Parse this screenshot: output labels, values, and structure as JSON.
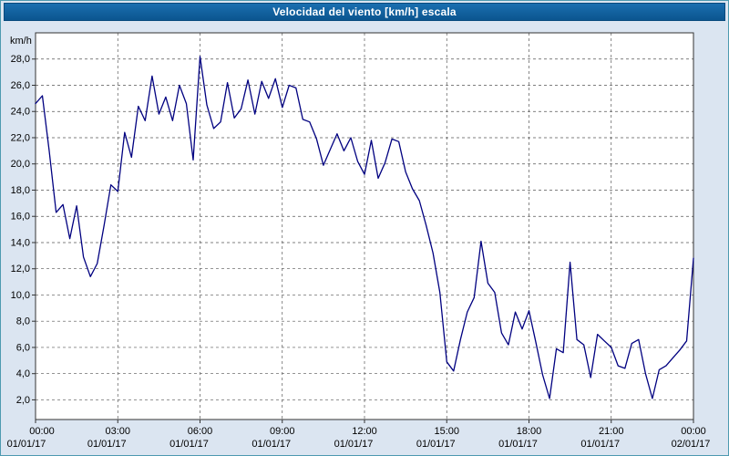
{
  "window": {
    "title": "Velocidad del viento [km/h] escala"
  },
  "chart_data": {
    "type": "line",
    "title": "Velocidad del viento [km/h] escala",
    "ylabel": "km/h",
    "xlabel": "",
    "series_name": "Velocidad del viento",
    "line_color": "#000080",
    "grid_color": "#555555",
    "plot_background": "#ffffff",
    "page_background": "#dbe5f1",
    "title_bar_color": "#0b558f",
    "grid": true,
    "legend": false,
    "x_range": [
      0,
      24
    ],
    "y_range": [
      0.5,
      30
    ],
    "y_ticks": [
      2,
      4,
      6,
      8,
      10,
      12,
      14,
      16,
      18,
      20,
      22,
      24,
      26,
      28
    ],
    "y_tick_labels": [
      "2,0",
      "4,0",
      "6,0",
      "8,0",
      "10,0",
      "12,0",
      "14,0",
      "16,0",
      "18,0",
      "20,0",
      "22,0",
      "24,0",
      "26,0",
      "28,0"
    ],
    "x_ticks": [
      0,
      3,
      6,
      9,
      12,
      15,
      18,
      21,
      24
    ],
    "x_tick_time_labels": [
      "00:00",
      "03:00",
      "06:00",
      "09:00",
      "12:00",
      "15:00",
      "18:00",
      "21:00",
      "00:00"
    ],
    "x_tick_date_labels": [
      "01/01/17",
      "01/01/17",
      "01/01/17",
      "01/01/17",
      "01/01/17",
      "01/01/17",
      "01/01/17",
      "01/01/17",
      "02/01/17"
    ],
    "start_hour": 0,
    "step_hours": 0.25,
    "values": [
      24.6,
      25.2,
      21.0,
      16.3,
      16.9,
      14.3,
      16.8,
      12.9,
      11.4,
      12.4,
      15.3,
      18.4,
      17.9,
      22.4,
      20.5,
      24.4,
      23.3,
      26.7,
      23.8,
      25.1,
      23.3,
      26.0,
      24.6,
      20.3,
      28.2,
      24.5,
      22.7,
      23.2,
      26.2,
      23.5,
      24.2,
      26.4,
      23.8,
      26.3,
      25.0,
      26.5,
      24.3,
      26.0,
      25.8,
      23.4,
      23.2,
      21.9,
      19.9,
      21.1,
      22.3,
      21.0,
      22.0,
      20.2,
      19.2,
      21.8,
      18.9,
      20.1,
      21.9,
      21.7,
      19.4,
      18.1,
      17.2,
      15.3,
      13.2,
      10.2,
      4.9,
      4.2,
      6.6,
      8.7,
      9.8,
      14.1,
      10.9,
      10.2,
      7.1,
      6.2,
      8.7,
      7.4,
      8.8,
      6.4,
      3.9,
      2.1,
      5.9,
      5.6,
      12.5,
      6.6,
      6.2,
      3.7,
      7.0,
      6.5,
      6.0,
      4.6,
      4.4,
      6.3,
      6.6,
      4.0,
      2.1,
      4.3,
      4.6,
      5.2,
      5.8,
      6.5,
      12.8
    ]
  }
}
